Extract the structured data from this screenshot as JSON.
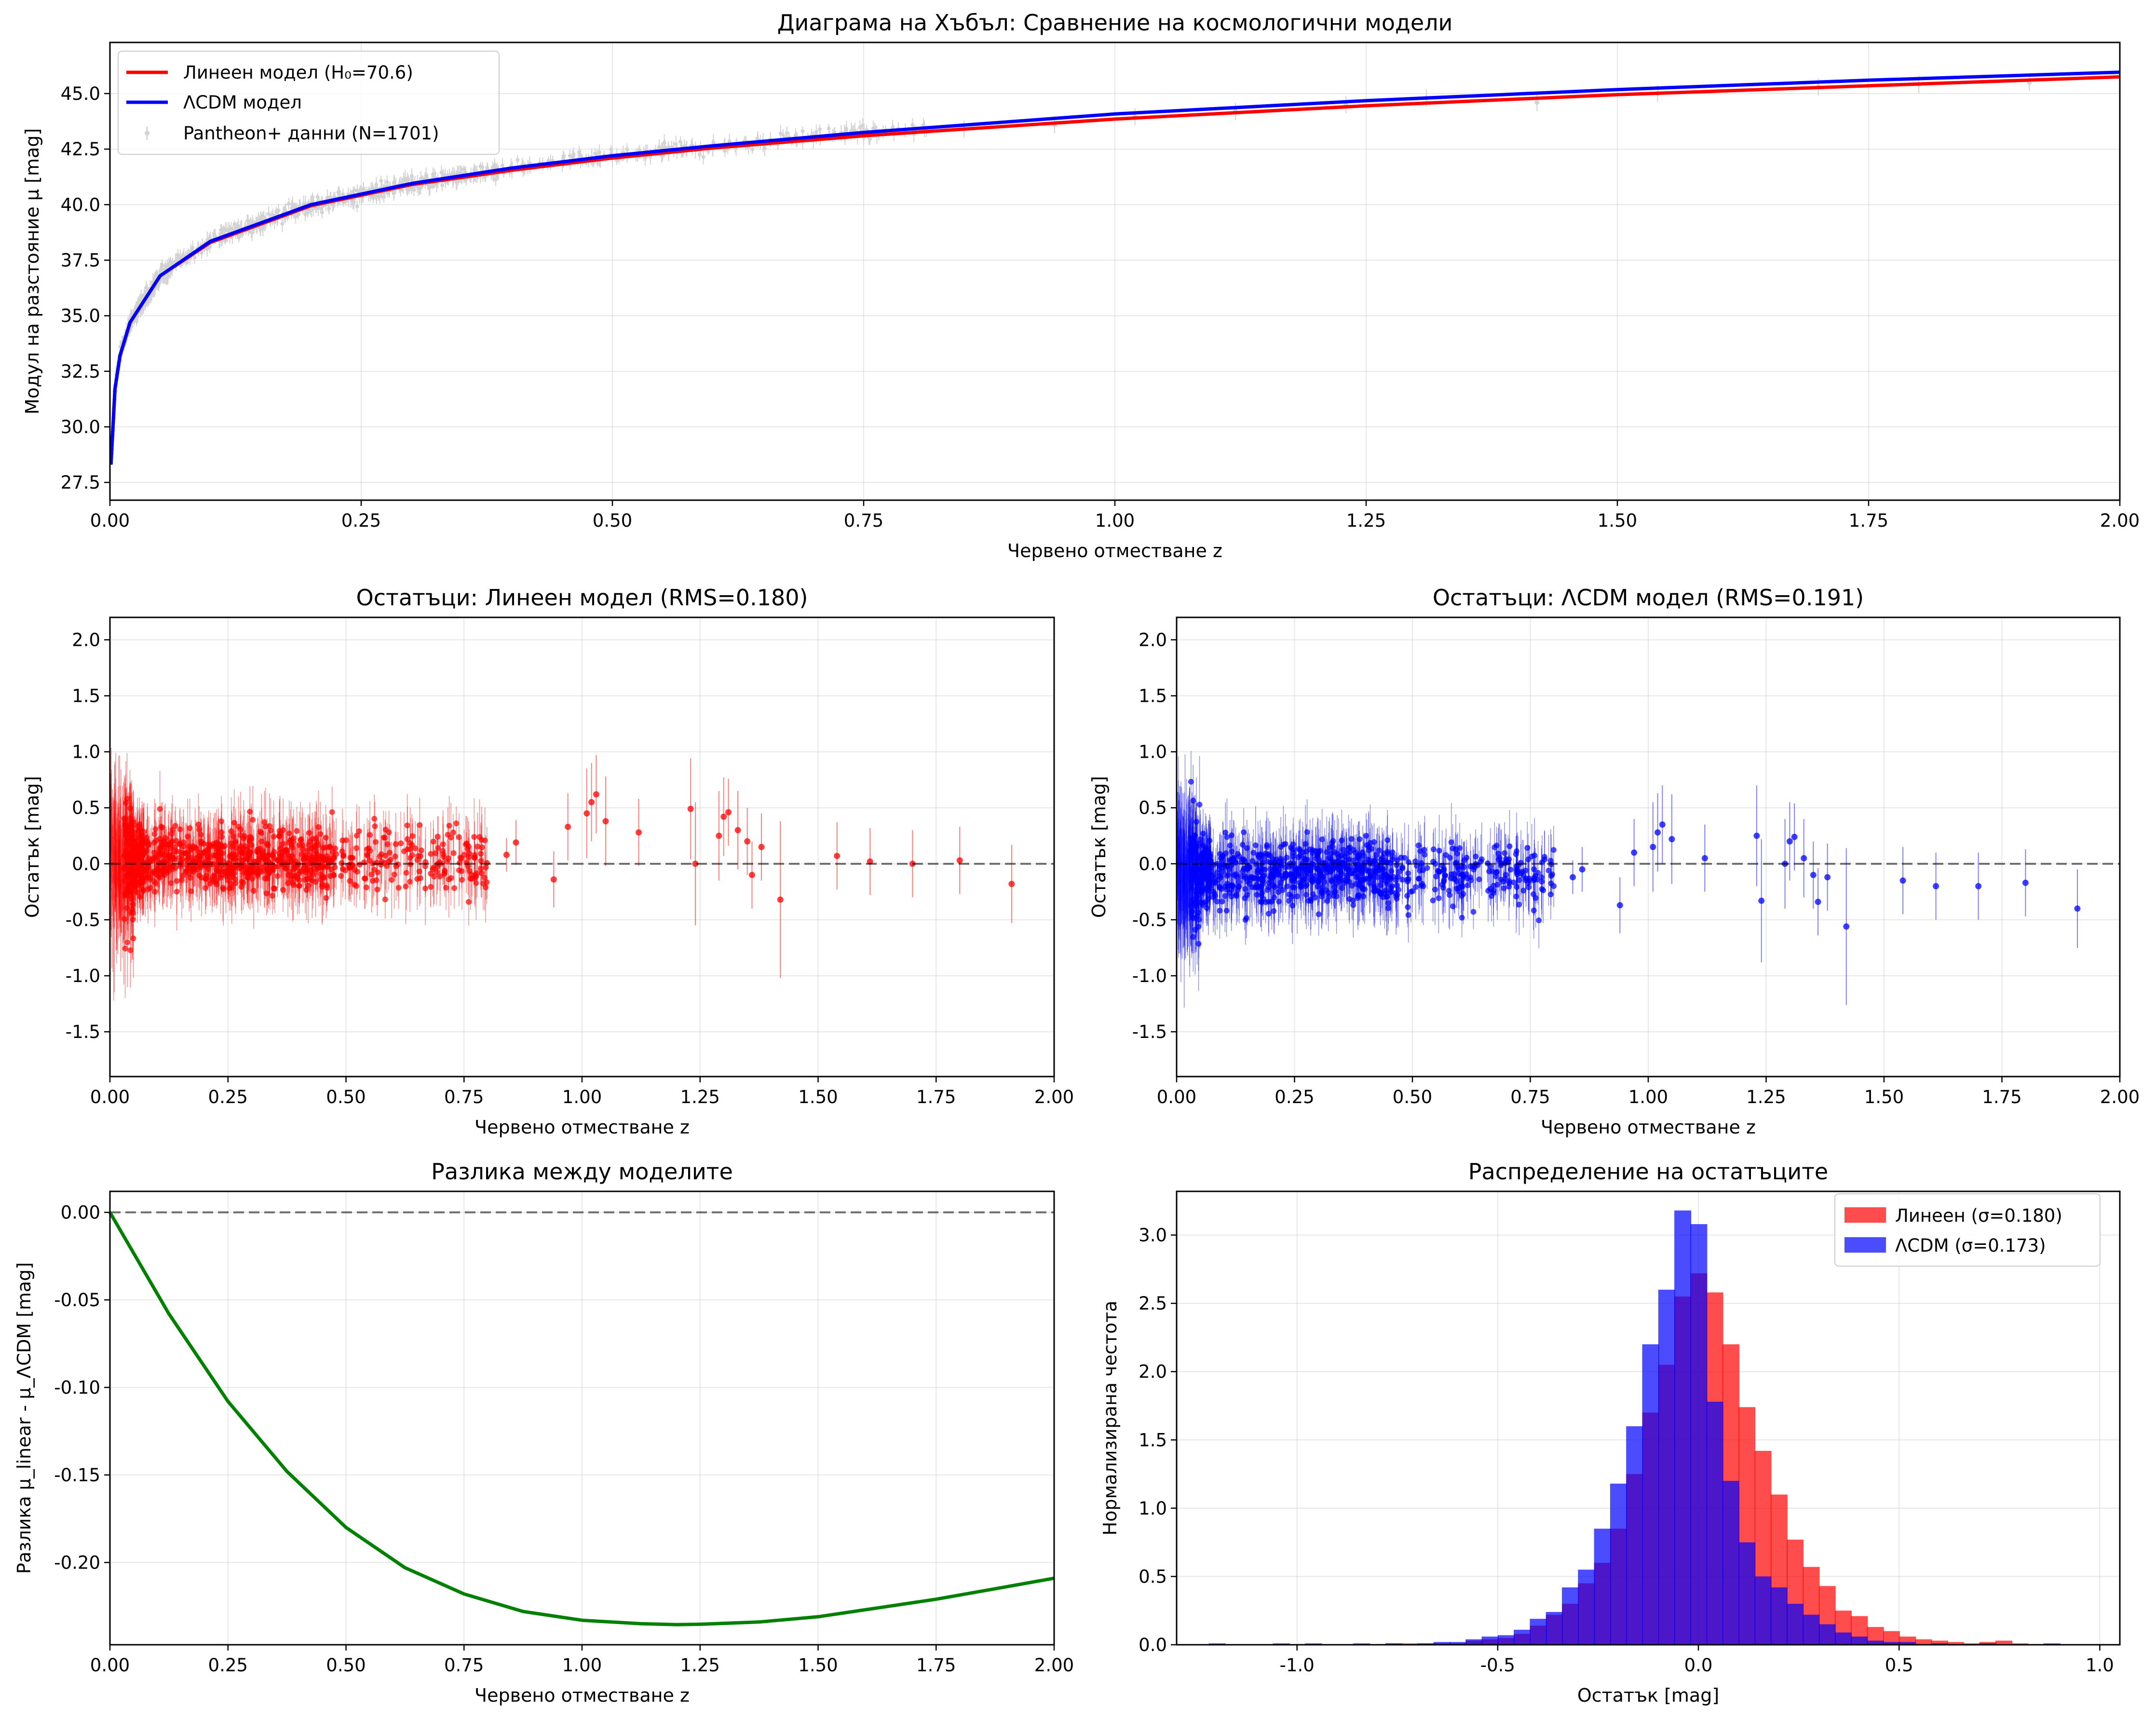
{
  "chart_data": [
    {
      "type": "scatter",
      "title": "Диаграма на Хъбъл: Сравнение на космологични модели",
      "xlabel": "Червено отместване z",
      "ylabel": "Модул на разстояние μ [mag]",
      "xlim": [
        0,
        2.0
      ],
      "ylim": [
        26.7,
        47.3
      ],
      "xticks": [
        "0.00",
        "0.25",
        "0.50",
        "0.75",
        "1.00",
        "1.25",
        "1.50",
        "1.75",
        "2.00"
      ],
      "yticks": [
        "27.5",
        "30.0",
        "32.5",
        "35.0",
        "37.5",
        "40.0",
        "42.5",
        "45.0"
      ],
      "grid": true,
      "legend_position": "top-left",
      "legend": [
        "Линеен модел (H₀=70.6)",
        "ΛCDM модел",
        "Pantheon+ данни (N=1701)"
      ],
      "colors": {
        "linear": "#ff0000",
        "lcdm": "#0000ff",
        "data": "#d3d3d3"
      },
      "series": [
        {
          "name": "Линеен модел (H₀=70.6)",
          "kind": "line",
          "x": [
            0.001,
            0.005,
            0.01,
            0.02,
            0.05,
            0.1,
            0.2,
            0.3,
            0.4,
            0.5,
            0.6,
            0.75,
            1.0,
            1.25,
            1.5,
            1.75,
            2.0
          ],
          "y": [
            28.3,
            31.7,
            33.2,
            34.7,
            36.8,
            38.3,
            39.95,
            40.9,
            41.55,
            42.1,
            42.55,
            43.1,
            43.85,
            44.45,
            44.95,
            45.35,
            45.75
          ]
        },
        {
          "name": "ΛCDM модел",
          "kind": "line",
          "x": [
            0.001,
            0.005,
            0.01,
            0.02,
            0.05,
            0.1,
            0.2,
            0.3,
            0.4,
            0.5,
            0.6,
            0.75,
            1.0,
            1.25,
            1.5,
            1.75,
            2.0
          ],
          "y": [
            28.3,
            31.7,
            33.2,
            34.7,
            36.8,
            38.35,
            40.0,
            40.95,
            41.65,
            42.2,
            42.65,
            43.25,
            44.08,
            44.68,
            45.18,
            45.6,
            45.96
          ]
        },
        {
          "name": "Pantheon+ данни (N=1701)",
          "kind": "errorbar",
          "x": [
            0.005,
            0.01,
            0.015,
            0.02,
            0.03,
            0.04,
            0.05,
            0.07,
            0.1,
            0.15,
            0.2,
            0.25,
            0.3,
            0.35,
            0.4,
            0.45,
            0.5,
            0.55,
            0.6,
            0.65,
            0.7,
            0.75,
            0.8,
            0.85,
            0.94,
            1.02,
            1.12,
            1.23,
            1.31,
            1.42,
            1.54,
            1.7,
            1.8,
            1.91
          ],
          "y": [
            31.6,
            33.2,
            34.0,
            34.7,
            35.6,
            36.2,
            36.8,
            37.6,
            38.4,
            39.3,
            40.0,
            40.5,
            40.9,
            41.3,
            41.55,
            41.85,
            42.1,
            42.35,
            42.55,
            42.75,
            42.9,
            43.05,
            43.2,
            43.4,
            43.6,
            43.95,
            44.2,
            44.5,
            44.8,
            44.6,
            45.0,
            45.3,
            45.4,
            45.5
          ]
        }
      ]
    },
    {
      "type": "scatter",
      "title": "Остатъци: Линеен модел (RMS=0.180)",
      "xlabel": "Червено отместване z",
      "ylabel": "Остатък [mag]",
      "xlim": [
        0,
        2.0
      ],
      "ylim": [
        -1.9,
        2.2
      ],
      "xticks": [
        "0.00",
        "0.25",
        "0.50",
        "0.75",
        "1.00",
        "1.25",
        "1.50",
        "1.75",
        "2.00"
      ],
      "yticks": [
        "-1.5",
        "-1.0",
        "-0.5",
        "0.0",
        "0.5",
        "1.0",
        "1.5",
        "2.0"
      ],
      "grid": true,
      "color": "#ff0000",
      "reference_line": 0.0,
      "series": [
        {
          "kind": "errorbar",
          "x": [
            0.84,
            0.86,
            0.94,
            0.97,
            1.01,
            1.02,
            1.03,
            1.05,
            1.12,
            1.23,
            1.24,
            1.29,
            1.3,
            1.31,
            1.33,
            1.35,
            1.36,
            1.38,
            1.42,
            1.54,
            1.61,
            1.7,
            1.8,
            1.91
          ],
          "y": [
            0.08,
            0.19,
            -0.14,
            0.33,
            0.45,
            0.55,
            0.62,
            0.38,
            0.28,
            0.49,
            0.0,
            0.25,
            0.42,
            0.46,
            0.3,
            0.2,
            -0.1,
            0.15,
            -0.32,
            0.07,
            0.02,
            0.0,
            0.03,
            -0.18
          ],
          "err": [
            0.15,
            0.2,
            0.25,
            0.3,
            0.4,
            0.35,
            0.35,
            0.4,
            0.3,
            0.45,
            0.55,
            0.4,
            0.35,
            0.3,
            0.35,
            0.3,
            0.3,
            0.3,
            0.7,
            0.3,
            0.3,
            0.3,
            0.3,
            0.35
          ]
        }
      ]
    },
    {
      "type": "scatter",
      "title": "Остатъци: ΛCDM модел (RMS=0.191)",
      "xlabel": "Червено отместване z",
      "ylabel": "Остатък [mag]",
      "xlim": [
        0,
        2.0
      ],
      "ylim": [
        -1.9,
        2.2
      ],
      "xticks": [
        "0.00",
        "0.25",
        "0.50",
        "0.75",
        "1.00",
        "1.25",
        "1.50",
        "1.75",
        "2.00"
      ],
      "yticks": [
        "-1.5",
        "-1.0",
        "-0.5",
        "0.0",
        "0.5",
        "1.0",
        "1.5",
        "2.0"
      ],
      "grid": true,
      "color": "#0000ff",
      "reference_line": 0.0,
      "series": [
        {
          "kind": "errorbar",
          "x": [
            0.84,
            0.86,
            0.94,
            0.97,
            1.01,
            1.02,
            1.03,
            1.05,
            1.12,
            1.23,
            1.24,
            1.29,
            1.3,
            1.31,
            1.33,
            1.35,
            1.36,
            1.38,
            1.42,
            1.54,
            1.61,
            1.7,
            1.8,
            1.91
          ],
          "y": [
            -0.12,
            -0.05,
            -0.37,
            0.1,
            0.15,
            0.28,
            0.35,
            0.22,
            0.05,
            0.25,
            -0.33,
            0.0,
            0.2,
            0.24,
            0.05,
            -0.1,
            -0.34,
            -0.12,
            -0.56,
            -0.15,
            -0.2,
            -0.2,
            -0.17,
            -0.4
          ],
          "err": [
            0.15,
            0.2,
            0.25,
            0.3,
            0.4,
            0.35,
            0.35,
            0.4,
            0.3,
            0.45,
            0.55,
            0.4,
            0.35,
            0.3,
            0.35,
            0.3,
            0.3,
            0.3,
            0.7,
            0.3,
            0.3,
            0.3,
            0.3,
            0.35
          ]
        }
      ]
    },
    {
      "type": "line",
      "title": "Разлика между моделите",
      "xlabel": "Червено отместване z",
      "ylabel": "Разлика μ_linear - μ_ΛCDM [mag]",
      "xlim": [
        0,
        2.0
      ],
      "ylim": [
        -0.247,
        0.012
      ],
      "xticks": [
        "0.00",
        "0.25",
        "0.50",
        "0.75",
        "1.00",
        "1.25",
        "1.50",
        "1.75",
        "2.00"
      ],
      "yticks": [
        "0.00",
        "-0.05",
        "-0.10",
        "-0.15",
        "-0.20"
      ],
      "grid": true,
      "color": "#008000",
      "reference_line": 0.0,
      "series": [
        {
          "x": [
            0.0,
            0.125,
            0.25,
            0.375,
            0.5,
            0.625,
            0.75,
            0.875,
            1.0,
            1.125,
            1.2,
            1.25,
            1.375,
            1.5,
            1.625,
            1.75,
            1.875,
            2.0
          ],
          "y": [
            0.0,
            -0.058,
            -0.108,
            -0.148,
            -0.18,
            -0.203,
            -0.218,
            -0.228,
            -0.233,
            -0.235,
            -0.2355,
            -0.2353,
            -0.234,
            -0.231,
            -0.226,
            -0.221,
            -0.215,
            -0.209
          ]
        }
      ]
    },
    {
      "type": "bar",
      "subtype": "histogram",
      "title": "Распределение на остатъците",
      "xlabel": "Остатък [mag]",
      "ylabel": "Нормализирана честота",
      "xlim": [
        -1.3,
        1.05
      ],
      "ylim": [
        0,
        3.32
      ],
      "xticks": [
        "-1.0",
        "-0.5",
        "0.0",
        "0.5",
        "1.0"
      ],
      "yticks": [
        "0.0",
        "0.5",
        "1.0",
        "1.5",
        "2.0",
        "2.5",
        "3.0"
      ],
      "grid": true,
      "legend_position": "top-right",
      "legend": [
        "Линеен (σ=0.180)",
        "ΛCDM (σ=0.173)"
      ],
      "bin_width": 0.042,
      "series": [
        {
          "name": "Линеен (σ=0.180)",
          "color": "#ff0000",
          "bins_start": [
            -0.78,
            -0.74,
            -0.7,
            -0.66,
            -0.62,
            -0.58,
            -0.54,
            -0.5,
            -0.46,
            -0.42,
            -0.38,
            -0.34,
            -0.3,
            -0.26,
            -0.22,
            -0.18,
            -0.14,
            -0.1,
            -0.06,
            -0.02,
            0.02,
            0.06,
            0.1,
            0.14,
            0.18,
            0.22,
            0.26,
            0.3,
            0.34,
            0.38,
            0.42,
            0.46,
            0.5,
            0.54,
            0.58,
            0.62,
            0.66,
            0.7,
            0.74,
            0.78
          ],
          "values": [
            0.01,
            0.01,
            0.01,
            0.01,
            0.01,
            0.03,
            0.04,
            0.05,
            0.08,
            0.14,
            0.22,
            0.3,
            0.45,
            0.6,
            0.85,
            1.25,
            1.7,
            2.05,
            2.55,
            2.72,
            2.58,
            2.2,
            1.74,
            1.42,
            1.1,
            0.77,
            0.57,
            0.43,
            0.25,
            0.21,
            0.13,
            0.1,
            0.06,
            0.04,
            0.03,
            0.02,
            0.01,
            0.02,
            0.03,
            0.01
          ]
        },
        {
          "name": "ΛCDM (σ=0.173)",
          "color": "#0000ff",
          "bins_start": [
            -1.22,
            -1.06,
            -0.98,
            -0.86,
            -0.78,
            -0.7,
            -0.66,
            -0.62,
            -0.58,
            -0.54,
            -0.5,
            -0.46,
            -0.42,
            -0.38,
            -0.34,
            -0.3,
            -0.26,
            -0.22,
            -0.18,
            -0.14,
            -0.1,
            -0.06,
            -0.02,
            0.02,
            0.06,
            0.1,
            0.14,
            0.18,
            0.22,
            0.26,
            0.3,
            0.34,
            0.38,
            0.42,
            0.46,
            0.5,
            0.58,
            0.7,
            0.86
          ],
          "values": [
            0.01,
            0.01,
            0.01,
            0.01,
            0.01,
            0.01,
            0.02,
            0.02,
            0.04,
            0.06,
            0.07,
            0.11,
            0.19,
            0.24,
            0.42,
            0.55,
            0.85,
            1.18,
            1.6,
            2.2,
            2.6,
            3.18,
            3.08,
            1.78,
            1.2,
            0.75,
            0.5,
            0.42,
            0.3,
            0.22,
            0.15,
            0.09,
            0.06,
            0.03,
            0.02,
            0.02,
            0.01,
            0.01,
            0.01
          ]
        }
      ]
    }
  ]
}
